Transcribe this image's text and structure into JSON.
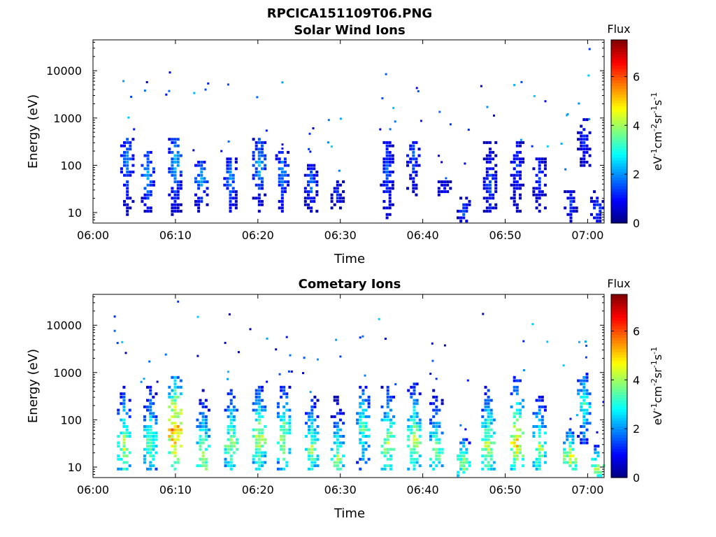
{
  "figure_title": "RPCICA151109T06.PNG",
  "colorbar": {
    "title": "Flux",
    "label_main": "eV",
    "label_sup1": "-1",
    "label_mid1": "cm",
    "label_sup2": "-2",
    "label_mid2": "sr",
    "label_sup3": "-1",
    "label_mid3": "s",
    "label_sup4": "-1",
    "ticks": [
      "0",
      "2",
      "4",
      "6"
    ],
    "range": [
      0,
      7.5
    ],
    "colormap": "jet"
  },
  "chart_data": [
    {
      "type": "heatmap",
      "title": "Solar Wind Ions",
      "xlabel": "Time",
      "ylabel": "Energy (eV)",
      "y_scale": "log",
      "xlim": [
        "06:00",
        "07:02"
      ],
      "ylim": [
        6,
        45000
      ],
      "x_tick_labels": [
        "06:00",
        "06:10",
        "06:20",
        "06:30",
        "06:40",
        "06:50",
        "07:00"
      ],
      "y_tick_labels": [
        "10",
        "100",
        "1000",
        "10000"
      ],
      "value_label": "Flux",
      "clusters": [
        {
          "t": 4.0,
          "emin": 8,
          "emax": 400,
          "vmax": 2.2,
          "peak": 140
        },
        {
          "t": 6.5,
          "emin": 10,
          "emax": 200,
          "vmax": 2.5,
          "peak": 60
        },
        {
          "t": 9.8,
          "emin": 8,
          "emax": 400,
          "vmax": 2.6,
          "peak": 110
        },
        {
          "t": 13.0,
          "emin": 10,
          "emax": 150,
          "vmax": 2.4,
          "peak": 50
        },
        {
          "t": 16.5,
          "emin": 10,
          "emax": 150,
          "vmax": 2.3,
          "peak": 50
        },
        {
          "t": 20.0,
          "emin": 10,
          "emax": 400,
          "vmax": 2.5,
          "peak": 110
        },
        {
          "t": 22.8,
          "emin": 10,
          "emax": 200,
          "vmax": 2.3,
          "peak": 70
        },
        {
          "t": 26.3,
          "emin": 10,
          "emax": 100,
          "vmax": 2.1,
          "peak": 40
        },
        {
          "t": 29.5,
          "emin": 10,
          "emax": 50,
          "vmax": 1.5,
          "peak": 25
        },
        {
          "t": 35.5,
          "emin": 6,
          "emax": 300,
          "vmax": 1.8,
          "peak": 80
        },
        {
          "t": 38.7,
          "emin": 20,
          "emax": 300,
          "vmax": 1.9,
          "peak": 150
        },
        {
          "t": 42.5,
          "emin": 20,
          "emax": 50,
          "vmax": 1.2,
          "peak": 30
        },
        {
          "t": 44.8,
          "emin": 6,
          "emax": 20,
          "vmax": 1.8,
          "peak": 10
        },
        {
          "t": 48.0,
          "emin": 10,
          "emax": 300,
          "vmax": 1.8,
          "peak": 40
        },
        {
          "t": 51.3,
          "emin": 10,
          "emax": 300,
          "vmax": 1.6,
          "peak": 100
        },
        {
          "t": 54.0,
          "emin": 10,
          "emax": 150,
          "vmax": 1.5,
          "peak": 60
        },
        {
          "t": 57.8,
          "emin": 6,
          "emax": 30,
          "vmax": 1.6,
          "peak": 15
        },
        {
          "t": 59.4,
          "emin": 80,
          "emax": 1000,
          "vmax": 1.4,
          "peak": 300
        },
        {
          "t": 61.0,
          "emin": 6,
          "emax": 30,
          "vmax": 1.8,
          "peak": 12
        }
      ]
    },
    {
      "type": "heatmap",
      "title": "Cometary Ions",
      "xlabel": "Time",
      "ylabel": "Energy (eV)",
      "y_scale": "log",
      "xlim": [
        "06:00",
        "07:02"
      ],
      "ylim": [
        6,
        45000
      ],
      "x_tick_labels": [
        "06:00",
        "06:10",
        "06:20",
        "06:30",
        "06:40",
        "06:50",
        "07:00"
      ],
      "y_tick_labels": [
        "10",
        "100",
        "1000",
        "10000"
      ],
      "value_label": "Flux",
      "clusters": [
        {
          "t": 3.6,
          "emin": 8,
          "emax": 500,
          "vmax": 4.6,
          "peak": 25
        },
        {
          "t": 6.8,
          "emin": 8,
          "emax": 500,
          "vmax": 4.0,
          "peak": 30
        },
        {
          "t": 9.8,
          "emin": 8,
          "emax": 800,
          "vmax": 6.3,
          "peak": 60
        },
        {
          "t": 13.2,
          "emin": 8,
          "emax": 500,
          "vmax": 4.8,
          "peak": 15
        },
        {
          "t": 16.6,
          "emin": 8,
          "emax": 500,
          "vmax": 4.4,
          "peak": 30
        },
        {
          "t": 20.0,
          "emin": 8,
          "emax": 500,
          "vmax": 4.8,
          "peak": 40
        },
        {
          "t": 23.0,
          "emin": 8,
          "emax": 500,
          "vmax": 4.6,
          "peak": 40
        },
        {
          "t": 26.4,
          "emin": 8,
          "emax": 300,
          "vmax": 4.3,
          "peak": 25
        },
        {
          "t": 29.5,
          "emin": 8,
          "emax": 300,
          "vmax": 4.3,
          "peak": 15
        },
        {
          "t": 32.6,
          "emin": 8,
          "emax": 500,
          "vmax": 3.8,
          "peak": 60
        },
        {
          "t": 35.6,
          "emin": 8,
          "emax": 500,
          "vmax": 4.7,
          "peak": 30
        },
        {
          "t": 38.8,
          "emin": 8,
          "emax": 600,
          "vmax": 4.6,
          "peak": 35
        },
        {
          "t": 41.5,
          "emin": 8,
          "emax": 500,
          "vmax": 4.2,
          "peak": 20
        },
        {
          "t": 44.8,
          "emin": 6,
          "emax": 40,
          "vmax": 4.7,
          "peak": 12
        },
        {
          "t": 47.8,
          "emin": 8,
          "emax": 600,
          "vmax": 4.8,
          "peak": 25
        },
        {
          "t": 51.3,
          "emin": 8,
          "emax": 800,
          "vmax": 5.5,
          "peak": 35
        },
        {
          "t": 54.0,
          "emin": 8,
          "emax": 300,
          "vmax": 4.6,
          "peak": 25
        },
        {
          "t": 57.7,
          "emin": 8,
          "emax": 80,
          "vmax": 5.2,
          "peak": 15
        },
        {
          "t": 59.4,
          "emin": 30,
          "emax": 1000,
          "vmax": 3.5,
          "peak": 200
        },
        {
          "t": 61.1,
          "emin": 6,
          "emax": 30,
          "vmax": 4.8,
          "peak": 10
        }
      ]
    }
  ]
}
